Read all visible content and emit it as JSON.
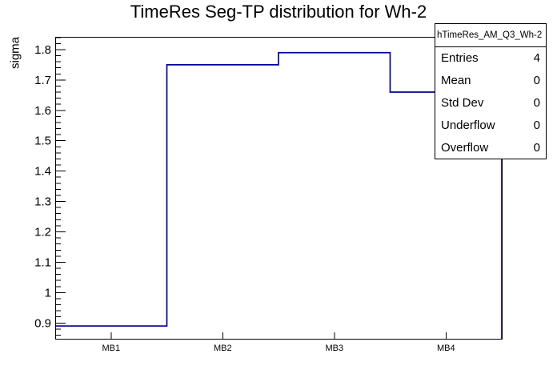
{
  "chart_data": {
    "type": "line",
    "subtype": "step-histogram",
    "title": "TimeRes Seg-TP distribution for Wh-2",
    "ylabel": "sigma",
    "xlabel": "",
    "categories": [
      "MB1",
      "MB2",
      "MB3",
      "MB4"
    ],
    "values": [
      0.89,
      1.75,
      1.79,
      1.66
    ],
    "ylim": [
      0.848,
      1.842
    ],
    "yticks": [
      0.9,
      1.0,
      1.1,
      1.2,
      1.3,
      1.4,
      1.5,
      1.6,
      1.7,
      1.8
    ],
    "minor_tick_step": 0.02,
    "grid": false,
    "legend_position": "none",
    "line_color": "#000099",
    "axis_color": "#000000",
    "background_color": "#ffffff"
  },
  "stats_box": {
    "header": "hTimeRes_AM_Q3_Wh-2",
    "rows": [
      {
        "label": "Entries",
        "value": "4"
      },
      {
        "label": "Mean",
        "value": "0"
      },
      {
        "label": "Std Dev",
        "value": "0"
      },
      {
        "label": "Underflow",
        "value": "0"
      },
      {
        "label": "Overflow",
        "value": "0"
      }
    ]
  }
}
